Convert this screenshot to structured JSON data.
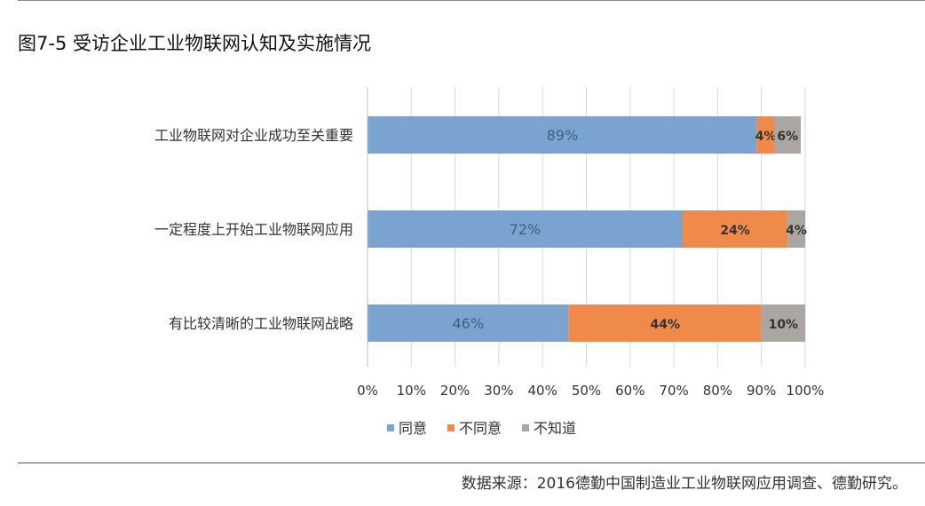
{
  "figure": {
    "title": "图7-5 受访企业工业物联网认知及实施情况",
    "source": "数据来源：2016德勤中国制造业工业物联网应用调查、德勤研究。"
  },
  "chart_data": {
    "type": "bar",
    "orientation": "horizontal",
    "stacked": true,
    "categories": [
      "工业物联网对企业成功至关重要",
      "一定程度上开始工业物联网应用",
      "有比较清晰的工业物联网战略"
    ],
    "series": [
      {
        "name": "同意",
        "values": [
          89,
          72,
          46
        ],
        "labels": [
          "89%",
          "72%",
          "46%"
        ],
        "color": "#7ba3cf"
      },
      {
        "name": "不同意",
        "values": [
          4,
          24,
          44
        ],
        "labels": [
          "4%",
          "24%",
          "44%"
        ],
        "color": "#f08a4b"
      },
      {
        "name": "不知道",
        "values": [
          6,
          4,
          10
        ],
        "labels": [
          "6%",
          "4%",
          "10%"
        ],
        "color": "#aca6a3"
      }
    ],
    "xlim": [
      0,
      100
    ],
    "xticks": [
      "0%",
      "10%",
      "20%",
      "30%",
      "40%",
      "50%",
      "60%",
      "70%",
      "80%",
      "90%",
      "100%"
    ],
    "legend_position": "bottom",
    "grid": true
  }
}
